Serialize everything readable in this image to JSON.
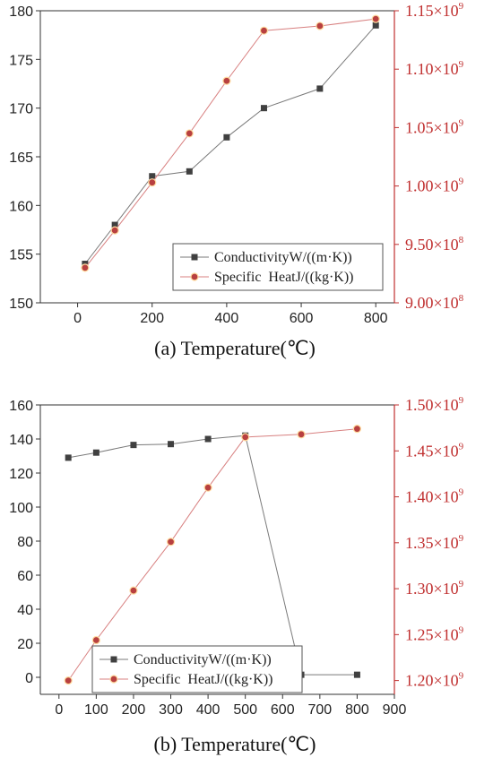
{
  "chart_data": [
    {
      "type": "line",
      "caption": "(a) Temperature(℃)",
      "x": [
        20,
        100,
        200,
        300,
        400,
        500,
        650,
        800
      ],
      "xlim": [
        -100,
        850
      ],
      "xticks": [
        "0",
        "200",
        "400",
        "600",
        "800"
      ],
      "xtick_values": [
        0,
        200,
        400,
        600,
        800
      ],
      "ylim_left": [
        150,
        180
      ],
      "yticks_left": [
        "150",
        "155",
        "160",
        "165",
        "170",
        "175",
        "180"
      ],
      "ylim_right": [
        0.9,
        1.15
      ],
      "yticks_right": [
        {
          "base": "9.00×10",
          "exp": "8",
          "value": 0.9
        },
        {
          "base": "9.50×10",
          "exp": "8",
          "value": 0.95
        },
        {
          "base": "1.00×10",
          "exp": "9",
          "value": 1.0
        },
        {
          "base": "1.05×10",
          "exp": "9",
          "value": 1.05
        },
        {
          "base": "1.10×10",
          "exp": "9",
          "value": 1.1
        },
        {
          "base": "1.15×10",
          "exp": "9",
          "value": 1.15
        }
      ],
      "legend_position": "bottom-right",
      "series": [
        {
          "name": "ConductivityW/((m·K))",
          "axis": "left",
          "marker": "square",
          "color": "#404040",
          "values": [
            154,
            158,
            163,
            163.5,
            167,
            170,
            172,
            178.5
          ]
        },
        {
          "name": "Specific  HeatJ/((kg·K))",
          "axis": "right",
          "marker": "circle",
          "color": "#b84040",
          "values": [
            0.93,
            0.962,
            1.003,
            1.045,
            1.09,
            1.133,
            1.137,
            1.143
          ]
        }
      ]
    },
    {
      "type": "line",
      "caption": "(b) Temperature(℃)",
      "x": [
        25,
        100,
        200,
        300,
        400,
        500,
        650,
        800
      ],
      "xlim": [
        -50,
        900
      ],
      "xticks": [
        "0",
        "100",
        "200",
        "300",
        "400",
        "500",
        "600",
        "700",
        "800",
        "900"
      ],
      "xtick_values": [
        0,
        100,
        200,
        300,
        400,
        500,
        600,
        700,
        800,
        900
      ],
      "ylim_left": [
        -10,
        160
      ],
      "yticks_left": [
        "0",
        "20",
        "40",
        "60",
        "80",
        "100",
        "120",
        "140",
        "160"
      ],
      "ylim_right": [
        1.185,
        1.5
      ],
      "yticks_right": [
        {
          "base": "1.20×10",
          "exp": "9",
          "value": 1.2
        },
        {
          "base": "1.25×10",
          "exp": "9",
          "value": 1.25
        },
        {
          "base": "1.30×10",
          "exp": "9",
          "value": 1.3
        },
        {
          "base": "1.35×10",
          "exp": "9",
          "value": 1.35
        },
        {
          "base": "1.40×10",
          "exp": "9",
          "value": 1.4
        },
        {
          "base": "1.45×10",
          "exp": "9",
          "value": 1.45
        },
        {
          "base": "1.50×10",
          "exp": "9",
          "value": 1.5
        }
      ],
      "legend_position": "bottom-left",
      "series": [
        {
          "name": "ConductivityW/((m·K))",
          "axis": "left",
          "marker": "square",
          "color": "#404040",
          "values": [
            129,
            132,
            136.5,
            137,
            140,
            142,
            1.5,
            1.5
          ]
        },
        {
          "name": "Specific  HeatJ/((kg·K))",
          "axis": "right",
          "marker": "circle",
          "color": "#b84040",
          "values": [
            1.2,
            1.244,
            1.298,
            1.351,
            1.41,
            1.465,
            1.468,
            1.474
          ]
        }
      ]
    }
  ],
  "colors": {
    "axis": "#333333",
    "right_axis": "#c03030",
    "grid": "none"
  }
}
